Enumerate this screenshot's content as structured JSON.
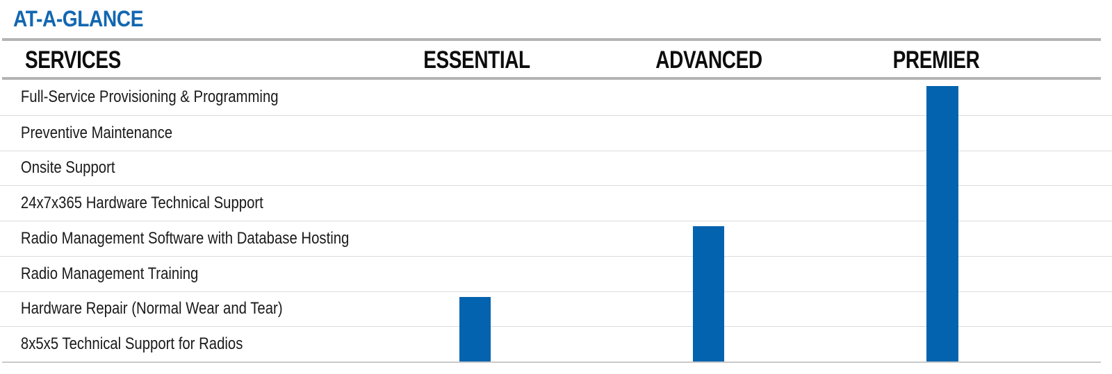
{
  "page": {
    "title": "AT-A-GLANCE"
  },
  "table": {
    "header": {
      "services": "SERVICES",
      "tiers": [
        {
          "label": "ESSENTIAL"
        },
        {
          "label": "ADVANCED"
        },
        {
          "label": "PREMIER"
        }
      ]
    },
    "rows": [
      "Full-Service Provisioning & Programming",
      "Preventive Maintenance",
      "Onsite Support",
      "24x7x365 Hardware Technical Support",
      "Radio Management Software with Database Hosting",
      "Radio Management Training",
      "Hardware Repair (Normal Wear and Tear)",
      "8x5x5 Technical Support for Radios"
    ],
    "coverage": {
      "ESSENTIAL": {
        "included_row_indexes": [
          6,
          7
        ],
        "included_services": [
          "Hardware Repair (Normal Wear and Tear)",
          "8x5x5 Technical Support for Radios"
        ]
      },
      "ADVANCED": {
        "included_row_indexes": [
          4,
          5,
          6,
          7
        ],
        "included_services": [
          "Radio Management Software with Database Hosting",
          "Radio Management Training",
          "Hardware Repair (Normal Wear and Tear)",
          "8x5x5 Technical Support for Radios"
        ]
      },
      "PREMIER": {
        "included_row_indexes": [
          0,
          1,
          2,
          3,
          4,
          5,
          6,
          7
        ],
        "included_services": [
          "Full-Service Provisioning & Programming",
          "Preventive Maintenance",
          "Onsite Support",
          "24x7x365 Hardware Technical Support",
          "Radio Management Software with Database Hosting",
          "Radio Management Training",
          "Hardware Repair (Normal Wear and Tear)",
          "8x5x5 Technical Support for Radios"
        ]
      }
    }
  },
  "colors": {
    "title_blue": "#1167b1",
    "bar_blue": "#0363ae",
    "thick_rule_gray": "#b4b4b4",
    "thin_rule_gray": "#dbdbdb",
    "bottom_rule_gray": "#c9c9c9",
    "text_black": "#1a1a1a"
  }
}
